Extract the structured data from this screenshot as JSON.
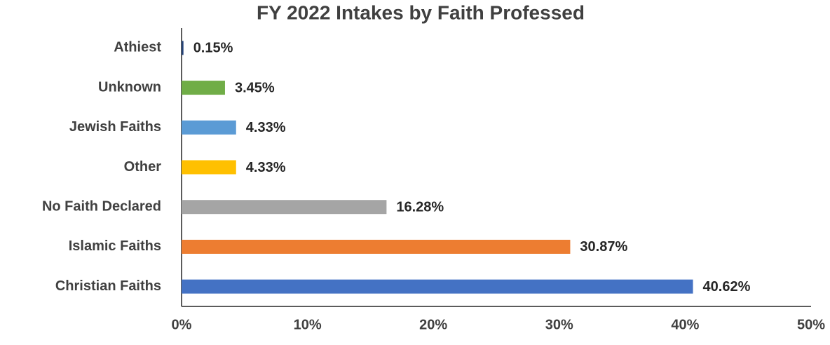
{
  "chart_data": {
    "type": "bar",
    "orientation": "horizontal",
    "title": "FY 2022 Intakes by Faith Professed",
    "categories": [
      "Athiest",
      "Unknown",
      "Jewish Faiths",
      "Other",
      "No Faith Declared",
      "Islamic Faiths",
      "Christian Faiths"
    ],
    "values": [
      0.15,
      3.45,
      4.33,
      4.33,
      16.28,
      30.87,
      40.62
    ],
    "value_labels": [
      "0.15%",
      "3.45%",
      "4.33%",
      "4.33%",
      "16.28%",
      "30.87%",
      "40.62%"
    ],
    "colors": [
      "#264478",
      "#70ad47",
      "#5b9bd5",
      "#ffc000",
      "#a5a5a5",
      "#ed7d31",
      "#4472c4"
    ],
    "xlim": [
      0,
      50
    ],
    "xticks": [
      {
        "value": 0,
        "label": "0%"
      },
      {
        "value": 10,
        "label": "10%"
      },
      {
        "value": 20,
        "label": "20%"
      },
      {
        "value": 30,
        "label": "30%"
      },
      {
        "value": 40,
        "label": "40%"
      },
      {
        "value": 50,
        "label": "50%"
      }
    ],
    "grid": false
  }
}
